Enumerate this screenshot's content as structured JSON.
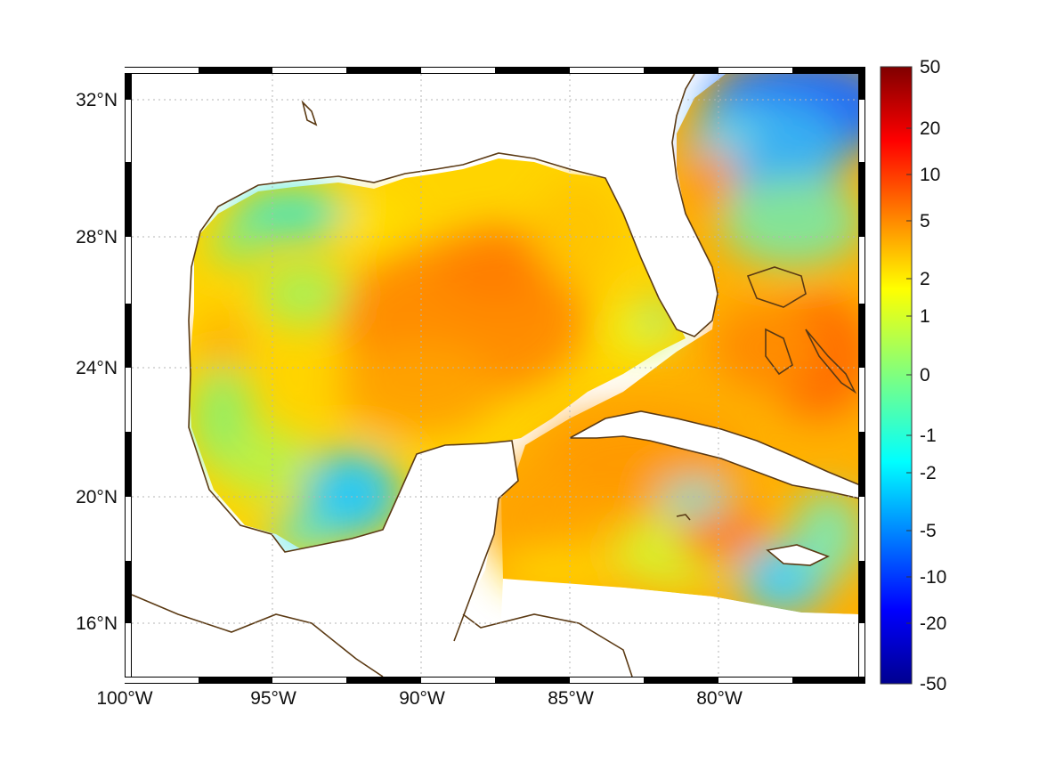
{
  "map": {
    "type": "filled-contour-map",
    "region": "Gulf of Mexico and western Caribbean",
    "longitude_range": [
      -100,
      -75
    ],
    "latitude_range": [
      14,
      33
    ],
    "longitude_ticks": [
      {
        "value": -100,
        "label": "100°W"
      },
      {
        "value": -95,
        "label": "95°W"
      },
      {
        "value": -90,
        "label": "90°W"
      },
      {
        "value": -85,
        "label": "85°W"
      },
      {
        "value": -80,
        "label": "80°W"
      }
    ],
    "latitude_ticks": [
      {
        "value": 32,
        "label": "32°N"
      },
      {
        "value": 28,
        "label": "28°N"
      },
      {
        "value": 24,
        "label": "24°N"
      },
      {
        "value": 20,
        "label": "20°N"
      },
      {
        "value": 16,
        "label": "16°N"
      }
    ],
    "grid": true,
    "frame": "black-and-white ticked border",
    "coastline_color": "#5b3a14",
    "colormap": "jet"
  },
  "colorbar": {
    "position": "right",
    "tick_labels": [
      "50",
      "20",
      "10",
      "5",
      "2",
      "1",
      "0",
      "-1",
      "-2",
      "-5",
      "-10",
      "-20",
      "-50"
    ],
    "min": -50,
    "max": 50,
    "scale": "symmetric non-linear"
  },
  "chart_data": {
    "type": "heatmap",
    "field_description_values": [
      {
        "lon": -88.5,
        "lat": 25.5,
        "value": 4
      },
      {
        "lon": -90,
        "lat": 23,
        "value": 3
      },
      {
        "lon": -86,
        "lat": 27,
        "value": 3
      },
      {
        "lon": -93.5,
        "lat": 28.8,
        "value": -1
      },
      {
        "lon": -96,
        "lat": 25.5,
        "value": 0.5
      },
      {
        "lon": -92,
        "lat": 20.3,
        "value": -2.5
      },
      {
        "lon": -94,
        "lat": 19,
        "value": -1
      },
      {
        "lon": -97,
        "lat": 22,
        "value": 1
      },
      {
        "lon": -78,
        "lat": 31.5,
        "value": -6
      },
      {
        "lon": -79.5,
        "lat": 29.5,
        "value": 2
      },
      {
        "lon": -77,
        "lat": 29,
        "value": -1.5
      },
      {
        "lon": -76,
        "lat": 24.5,
        "value": 5
      },
      {
        "lon": -80,
        "lat": 22,
        "value": 4
      },
      {
        "lon": -78,
        "lat": 18.5,
        "value": 4
      },
      {
        "lon": -82,
        "lat": 18,
        "value": 1
      },
      {
        "lon": -77,
        "lat": 17,
        "value": -1.5
      },
      {
        "lon": -84.5,
        "lat": 26.5,
        "value": 1.5
      },
      {
        "lon": -85,
        "lat": 23.5,
        "value": 2
      }
    ]
  }
}
